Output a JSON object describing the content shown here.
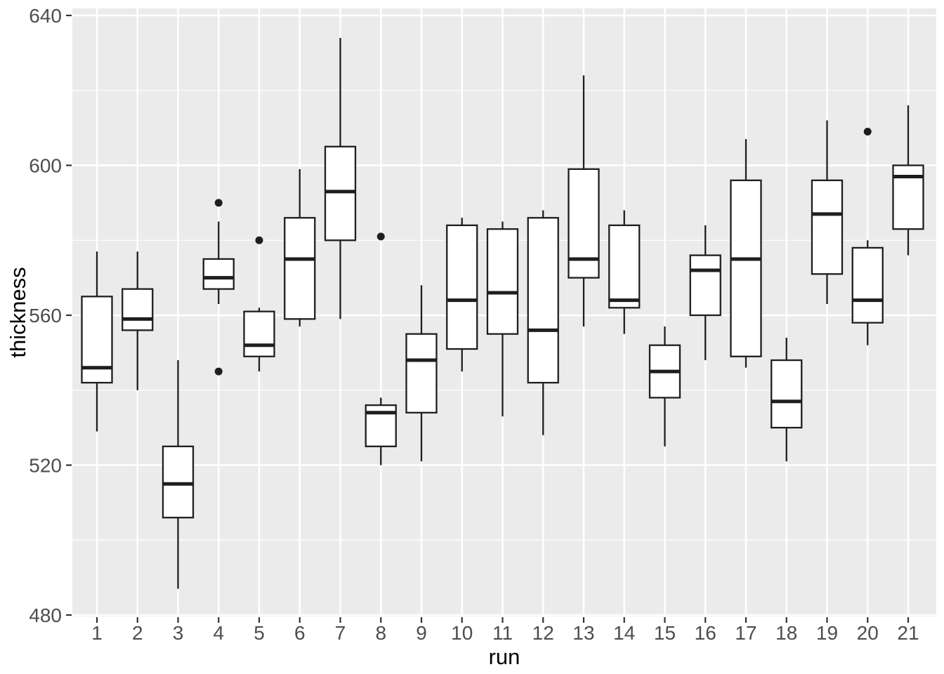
{
  "chart_data": {
    "type": "boxplot",
    "title": "",
    "xlabel": "run",
    "ylabel": "thickness",
    "categories": [
      "1",
      "2",
      "3",
      "4",
      "5",
      "6",
      "7",
      "8",
      "9",
      "10",
      "11",
      "12",
      "13",
      "14",
      "15",
      "16",
      "17",
      "18",
      "19",
      "20",
      "21"
    ],
    "y_axis": {
      "ticks": [
        480,
        520,
        560,
        600,
        640
      ],
      "minor_gridlines": [
        500,
        540,
        580,
        620
      ],
      "range": [
        479.5,
        642.0
      ]
    },
    "legend": "none",
    "grid": "white major and minor horizontal gridlines, white vertical gridlines at each category, on gray panel",
    "boxes": [
      {
        "run": "1",
        "whisker_low": 529,
        "q1": 542,
        "median": 546,
        "q3": 565,
        "whisker_high": 577,
        "outliers": []
      },
      {
        "run": "2",
        "whisker_low": 540,
        "q1": 556,
        "median": 559,
        "q3": 567,
        "whisker_high": 577,
        "outliers": []
      },
      {
        "run": "3",
        "whisker_low": 487,
        "q1": 506,
        "median": 515,
        "q3": 525,
        "whisker_high": 548,
        "outliers": []
      },
      {
        "run": "4",
        "whisker_low": 563,
        "q1": 567,
        "median": 570,
        "q3": 575,
        "whisker_high": 585,
        "outliers": [
          590,
          545
        ]
      },
      {
        "run": "5",
        "whisker_low": 545,
        "q1": 549,
        "median": 552,
        "q3": 561,
        "whisker_high": 562,
        "outliers": [
          580
        ]
      },
      {
        "run": "6",
        "whisker_low": 557,
        "q1": 559,
        "median": 575,
        "q3": 586,
        "whisker_high": 599,
        "outliers": []
      },
      {
        "run": "7",
        "whisker_low": 559,
        "q1": 580,
        "median": 593,
        "q3": 605,
        "whisker_high": 634,
        "outliers": []
      },
      {
        "run": "8",
        "whisker_low": 520,
        "q1": 525,
        "median": 534,
        "q3": 536,
        "whisker_high": 538,
        "outliers": [
          581
        ]
      },
      {
        "run": "9",
        "whisker_low": 521,
        "q1": 534,
        "median": 548,
        "q3": 555,
        "whisker_high": 568,
        "outliers": []
      },
      {
        "run": "10",
        "whisker_low": 545,
        "q1": 551,
        "median": 564,
        "q3": 584,
        "whisker_high": 586,
        "outliers": []
      },
      {
        "run": "11",
        "whisker_low": 533,
        "q1": 555,
        "median": 566,
        "q3": 583,
        "whisker_high": 585,
        "outliers": []
      },
      {
        "run": "12",
        "whisker_low": 528,
        "q1": 542,
        "median": 556,
        "q3": 586,
        "whisker_high": 588,
        "outliers": []
      },
      {
        "run": "13",
        "whisker_low": 557,
        "q1": 570,
        "median": 575,
        "q3": 599,
        "whisker_high": 624,
        "outliers": []
      },
      {
        "run": "14",
        "whisker_low": 555,
        "q1": 562,
        "median": 564,
        "q3": 584,
        "whisker_high": 588,
        "outliers": []
      },
      {
        "run": "15",
        "whisker_low": 525,
        "q1": 538,
        "median": 545,
        "q3": 552,
        "whisker_high": 557,
        "outliers": []
      },
      {
        "run": "16",
        "whisker_low": 548,
        "q1": 560,
        "median": 572,
        "q3": 576,
        "whisker_high": 584,
        "outliers": []
      },
      {
        "run": "17",
        "whisker_low": 546,
        "q1": 549,
        "median": 575,
        "q3": 596,
        "whisker_high": 607,
        "outliers": []
      },
      {
        "run": "18",
        "whisker_low": 521,
        "q1": 530,
        "median": 537,
        "q3": 548,
        "whisker_high": 554,
        "outliers": []
      },
      {
        "run": "19",
        "whisker_low": 563,
        "q1": 571,
        "median": 587,
        "q3": 596,
        "whisker_high": 612,
        "outliers": []
      },
      {
        "run": "20",
        "whisker_low": 552,
        "q1": 558,
        "median": 564,
        "q3": 578,
        "whisker_high": 580,
        "outliers": [
          609
        ]
      },
      {
        "run": "21",
        "whisker_low": 576,
        "q1": 583,
        "median": 597,
        "q3": 600,
        "whisker_high": 616,
        "outliers": []
      }
    ]
  },
  "styles": {
    "panel_bg": "#EBEBEB",
    "grid_color": "#FFFFFF",
    "box_fill": "#FFFFFF",
    "box_stroke": "#1E1E1E",
    "outlier_color": "#1E1E1E",
    "tick_mark_color": "#333333",
    "tick_label_color": "#4D4D4D",
    "axis_title_color": "#000000"
  }
}
